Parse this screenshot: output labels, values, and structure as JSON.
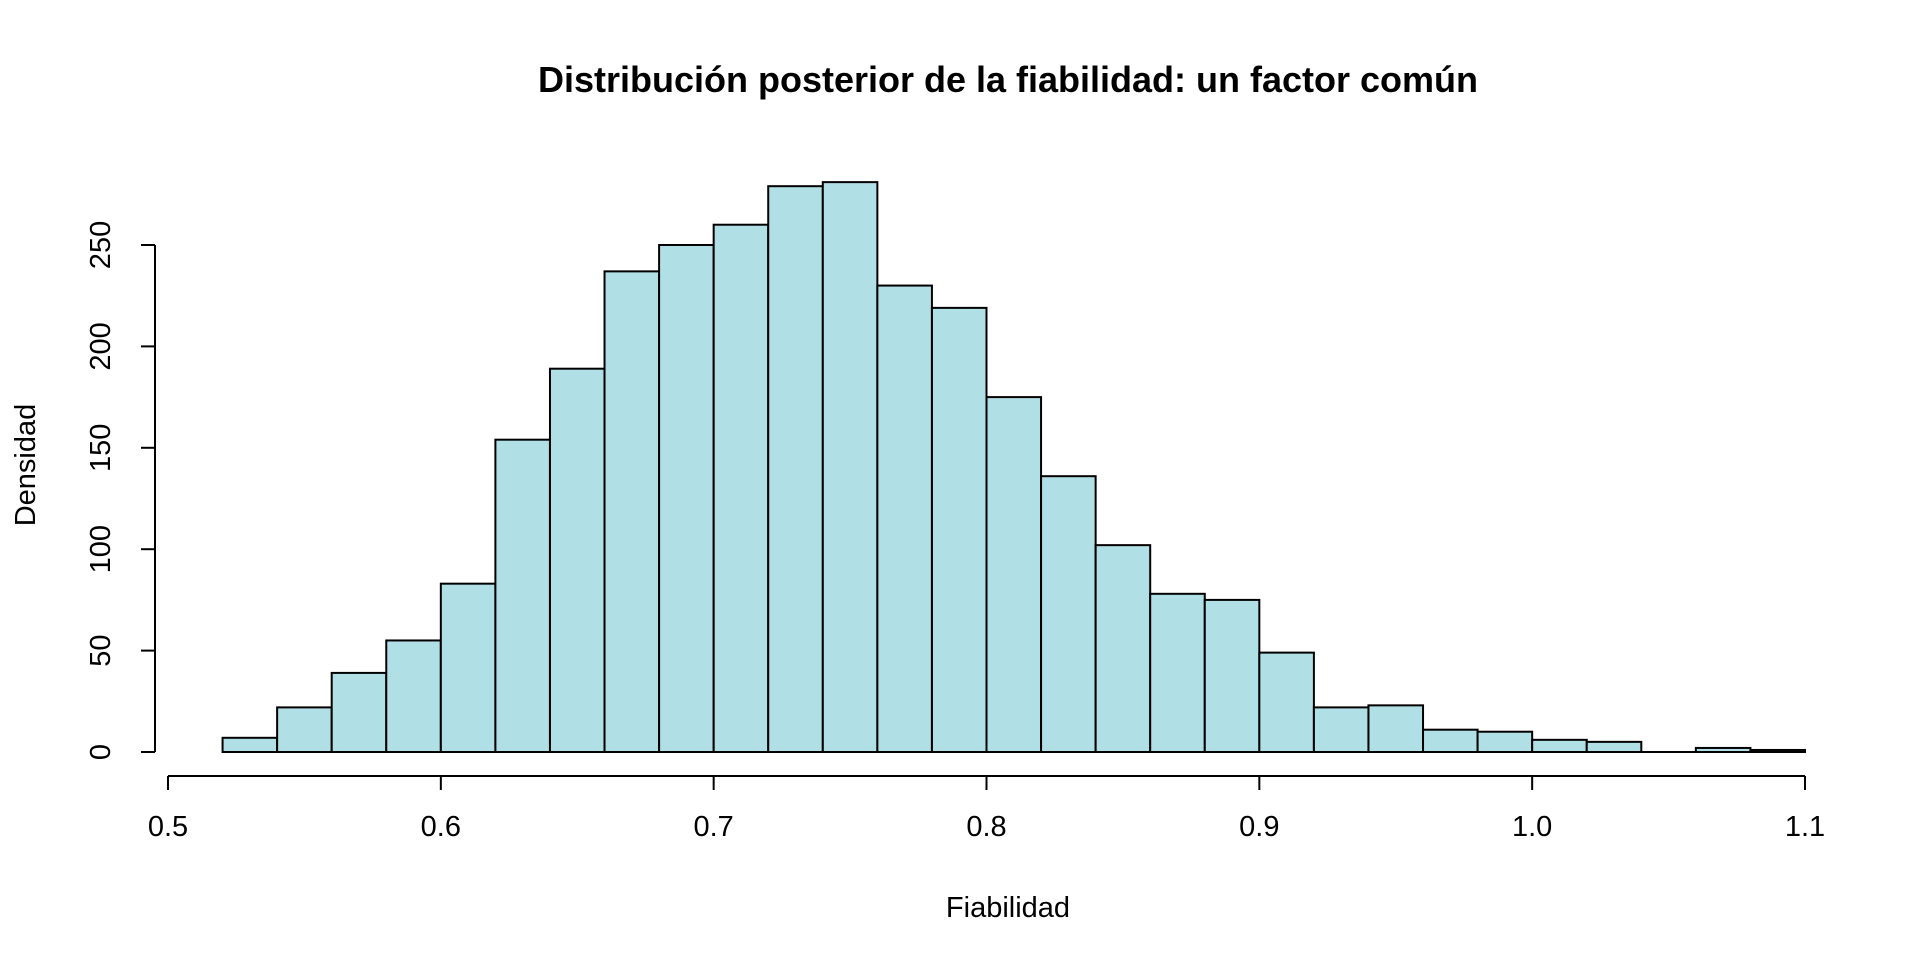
{
  "chart_data": {
    "type": "bar",
    "subtype": "histogram",
    "title": "Distribución posterior de la fiabilidad: un factor común",
    "xlabel": "Fiabilidad",
    "ylabel": "Densidad",
    "xlim": [
      0.5,
      1.1
    ],
    "ylim": [
      0,
      250
    ],
    "x_ticks": [
      "0.5",
      "0.6",
      "0.7",
      "0.8",
      "0.9",
      "1.0",
      "1.1"
    ],
    "x_tick_values": [
      0.5,
      0.6,
      0.7,
      0.8,
      0.9,
      1.0,
      1.1
    ],
    "y_ticks": [
      "0",
      "50",
      "100",
      "150",
      "200",
      "250"
    ],
    "y_tick_values": [
      0,
      50,
      100,
      150,
      200,
      250
    ],
    "bin_edges": [
      0.52,
      0.54,
      0.56,
      0.58,
      0.6,
      0.62,
      0.64,
      0.66,
      0.68,
      0.7,
      0.72,
      0.74,
      0.76,
      0.78,
      0.8,
      0.82,
      0.84,
      0.86,
      0.88,
      0.9,
      0.92,
      0.94,
      0.96,
      0.98,
      1.0,
      1.02,
      1.04,
      1.06,
      1.08,
      1.1
    ],
    "values": [
      7,
      22,
      39,
      55,
      83,
      154,
      189,
      237,
      250,
      260,
      279,
      281,
      230,
      219,
      175,
      136,
      102,
      78,
      75,
      49,
      22,
      23,
      11,
      10,
      6,
      5,
      0,
      2,
      1
    ],
    "bar_fill": "#b0dfe5",
    "bar_stroke": "#000000",
    "grid": false,
    "legend": "none"
  }
}
